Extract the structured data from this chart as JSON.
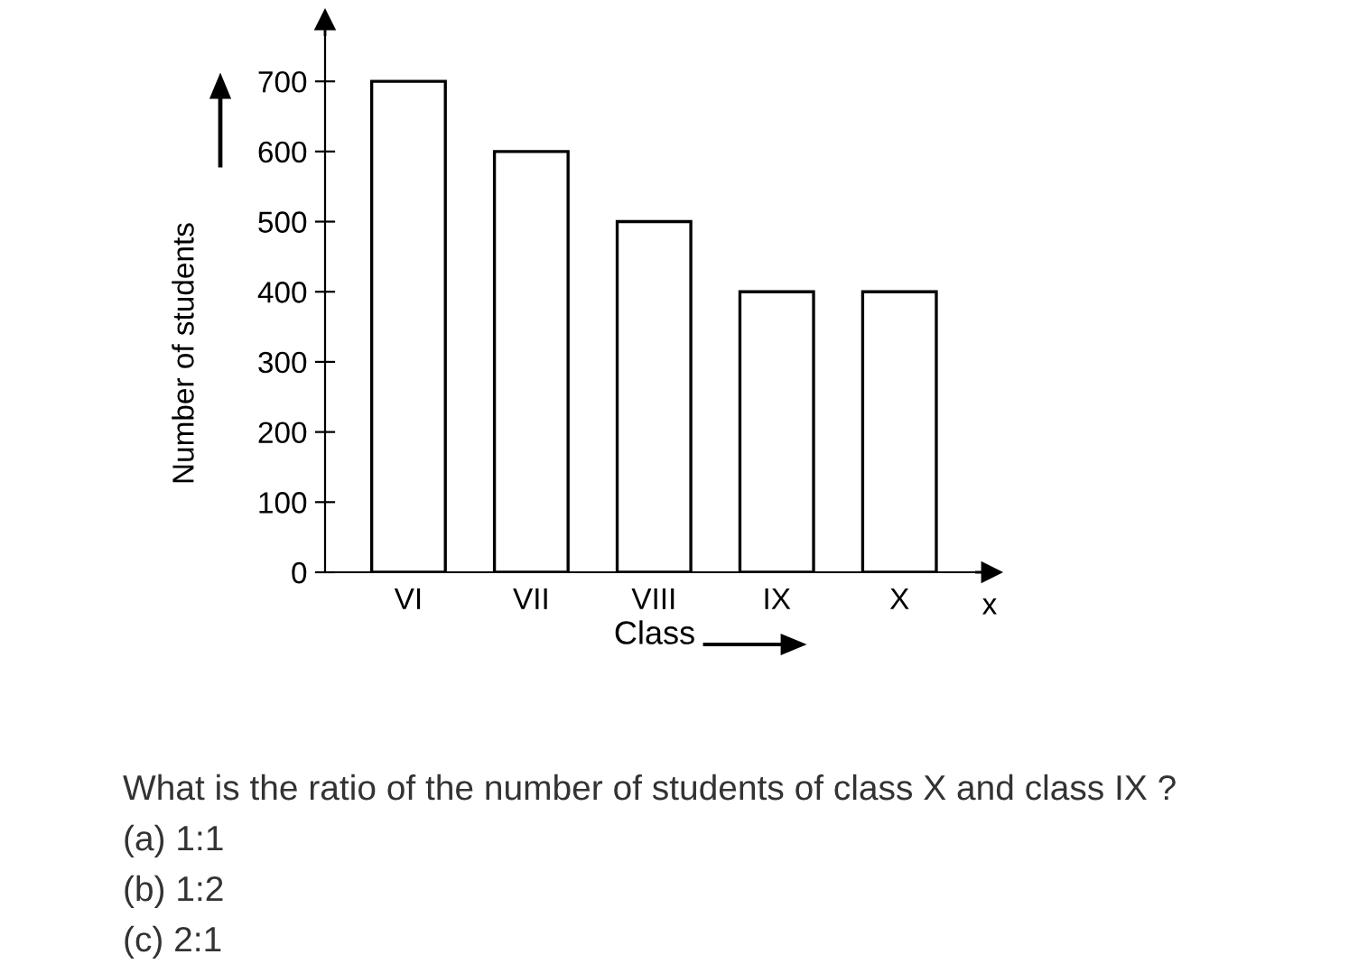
{
  "chart_data": {
    "type": "bar",
    "xlabel": "Class",
    "ylabel": "Number of students",
    "categories": [
      "VI",
      "VII",
      "VIII",
      "IX",
      "X"
    ],
    "values": [
      700,
      600,
      500,
      400,
      400
    ],
    "color": "#ffffff",
    "ylim": [
      0,
      780
    ],
    "yticks": [
      0,
      100,
      200,
      300,
      400,
      500,
      600,
      700
    ],
    "grid": false,
    "annotations": [
      "x",
      "What is the ratio of the number of students of class X and class IX ?",
      "(a) 1:1",
      "(b) 1:2",
      "(c) 2:1"
    ]
  }
}
